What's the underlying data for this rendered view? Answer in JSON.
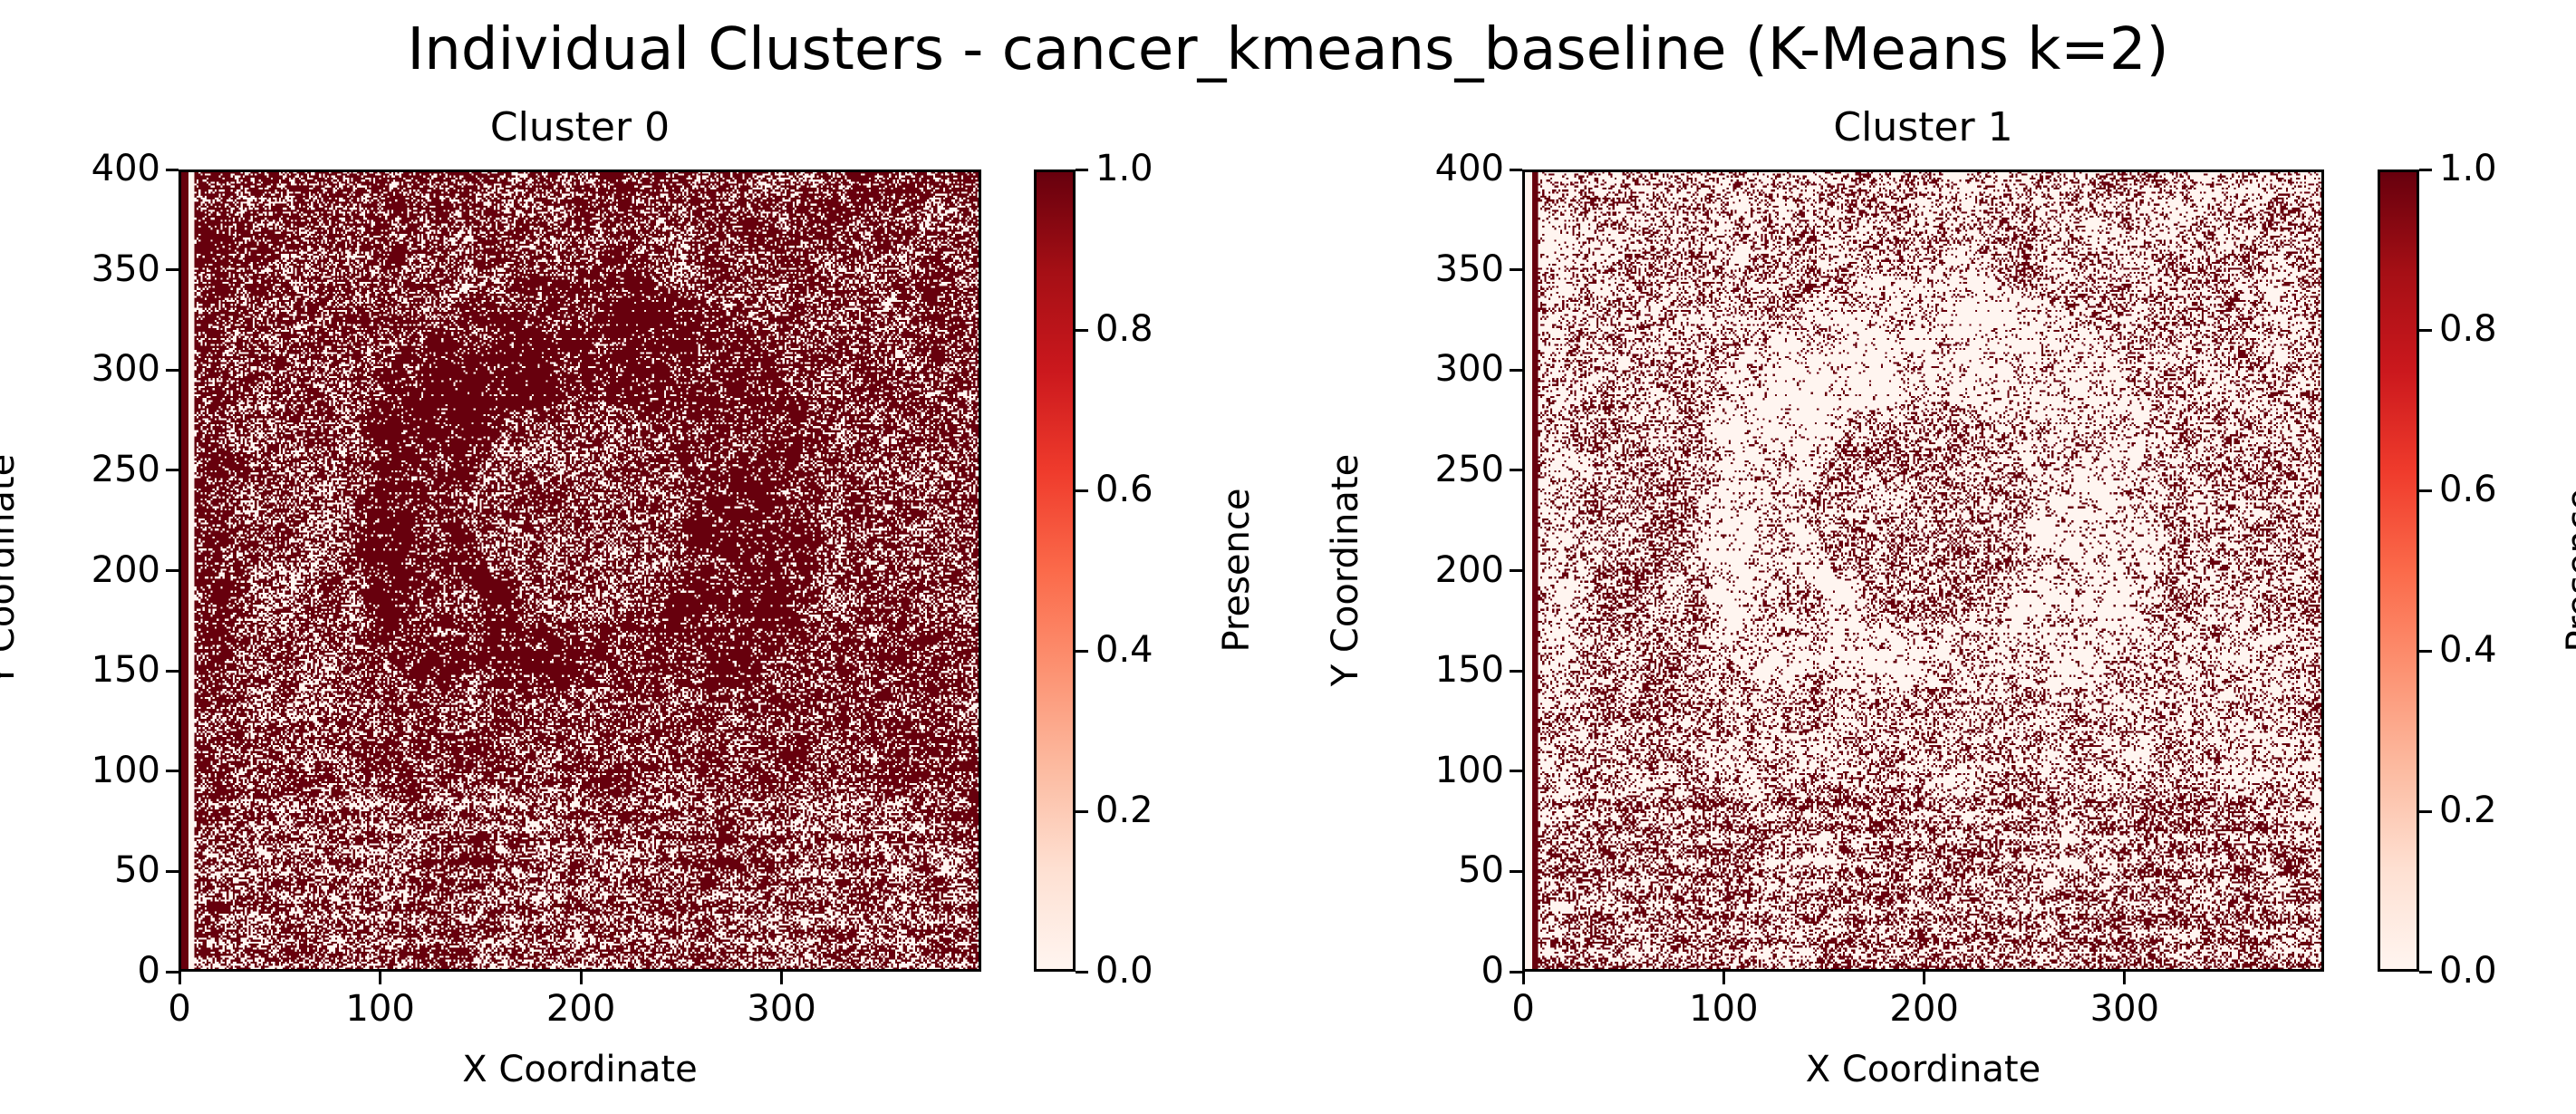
{
  "suptitle": "Individual Clusters - cancer_kmeans_baseline (K-Means k=2)",
  "colors": {
    "low": "#fff5f0",
    "high": "#67000d",
    "cmap": "Reds"
  },
  "chart_data": [
    {
      "type": "heatmap",
      "title": "Cluster 0",
      "xlabel": "X Coordinate",
      "ylabel": "Y Coordinate",
      "xlim": [
        0,
        399
      ],
      "ylim": [
        0,
        400
      ],
      "xticks": [
        "0",
        "100",
        "200",
        "300"
      ],
      "yticks": [
        "0",
        "50",
        "100",
        "150",
        "200",
        "250",
        "300",
        "350",
        "400"
      ],
      "colorbar": {
        "label": "Presence",
        "range": [
          0.0,
          1.0
        ],
        "ticks": [
          "0.0",
          "0.2",
          "0.4",
          "0.6",
          "0.8",
          "1.0"
        ]
      },
      "values": "binary (0 or 1); mostly 1 (dark red) with scattered 0 (white) pixels; near-empty column at x≈6"
    },
    {
      "type": "heatmap",
      "title": "Cluster 1",
      "xlabel": "X Coordinate",
      "ylabel": "Y Coordinate",
      "xlim": [
        0,
        399
      ],
      "ylim": [
        0,
        400
      ],
      "xticks": [
        "0",
        "100",
        "200",
        "300"
      ],
      "yticks": [
        "0",
        "50",
        "100",
        "150",
        "200",
        "250",
        "300",
        "350",
        "400"
      ],
      "colorbar": {
        "label": "Presence",
        "range": [
          0.0,
          1.0
        ],
        "ticks": [
          "0.0",
          "0.2",
          "0.4",
          "0.6",
          "0.8",
          "1.0"
        ]
      },
      "values": "binary (0 or 1); complement of Cluster 0 — mostly 0 (light) with scattered 1 (dark red) pixels; full column at x≈6"
    }
  ]
}
